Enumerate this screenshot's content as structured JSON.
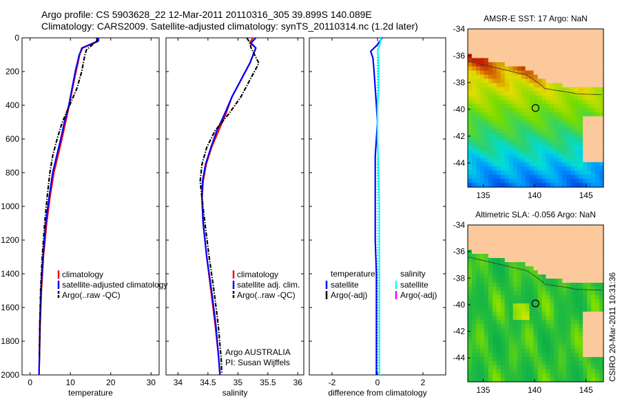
{
  "header": {
    "line1": "Argo profile: CS 5903628_22 12-Mar-2011 20110316_305 39.899S 140.089E",
    "line2": "Climatology: CARS2009. Satellite-adjusted climatology: synTS_20110314.nc (1.2d later)"
  },
  "side_stamp": "CSIRO 20-Mar-2011 10:31:36",
  "colors": {
    "climatology": "#ff0000",
    "satellite": "#0000ff",
    "argo": "#000000",
    "salinity_satellite": "#00ffff",
    "salinity_argo": "#ff00ff",
    "land": "#fbc99b"
  },
  "chart_data": [
    {
      "id": "temperature",
      "type": "line",
      "xlabel": "temperature",
      "ylabel": "",
      "xlim": [
        -2,
        32
      ],
      "ylim": [
        2000,
        0
      ],
      "xticks": [
        0,
        10,
        20,
        30
      ],
      "yticks": [
        0,
        200,
        400,
        600,
        800,
        1000,
        1200,
        1400,
        1600,
        1800,
        2000
      ],
      "y_axis_reversed": true,
      "series": [
        {
          "name": "climatology",
          "color": "#ff0000",
          "style": "solid",
          "x": [
            16.8,
            16.7,
            12.8,
            12.3,
            11.4,
            10.5,
            9.7,
            8.8,
            7.9,
            6.9,
            5.9,
            4.9,
            4.1,
            3.3,
            2.8,
            2.5,
            2.3,
            2.2
          ],
          "y": [
            0,
            20,
            60,
            100,
            200,
            300,
            400,
            500,
            600,
            700,
            800,
            950,
            1100,
            1300,
            1500,
            1700,
            1900,
            2000
          ]
        },
        {
          "name": "satellite-adjusted climatology",
          "color": "#0000ff",
          "style": "solid",
          "x": [
            17.0,
            16.9,
            13.0,
            12.2,
            11.2,
            10.4,
            9.6,
            8.5,
            7.6,
            6.6,
            5.6,
            4.7,
            3.9,
            3.2,
            2.7,
            2.4,
            2.3,
            2.2
          ],
          "y": [
            0,
            20,
            60,
            100,
            200,
            300,
            400,
            500,
            600,
            700,
            800,
            950,
            1100,
            1300,
            1500,
            1700,
            1900,
            2000
          ]
        },
        {
          "name": "Argo(..raw -QC)",
          "color": "#000000",
          "style": "dashdot",
          "x": [
            16.6,
            16.5,
            14.0,
            13.6,
            12.8,
            11.6,
            9.8,
            8.0,
            6.7,
            5.6,
            4.9,
            4.2,
            3.6,
            3.0,
            2.6,
            2.4,
            2.3
          ],
          "y": [
            0,
            20,
            70,
            100,
            200,
            300,
            400,
            500,
            600,
            700,
            800,
            950,
            1100,
            1300,
            1500,
            1700,
            1900
          ]
        }
      ],
      "legend": {
        "placement": "lower-right",
        "entries": [
          "climatology",
          "satellite-adjusted climatology",
          "Argo(..raw -QC)"
        ]
      }
    },
    {
      "id": "salinity",
      "type": "line",
      "xlabel": "salinity",
      "ylabel": "",
      "xlim": [
        33.8,
        36.1
      ],
      "ylim": [
        2000,
        0
      ],
      "xticks": [
        34,
        34.5,
        35,
        35.5,
        36
      ],
      "yticks": [
        0,
        200,
        400,
        600,
        800,
        1000,
        1200,
        1400,
        1600,
        1800,
        2000
      ],
      "y_axis_reversed": true,
      "series": [
        {
          "name": "climatology",
          "color": "#ff0000",
          "style": "solid",
          "x": [
            35.25,
            35.2,
            35.3,
            35.2,
            35.05,
            34.9,
            34.8,
            34.68,
            34.56,
            34.47,
            34.42,
            34.4,
            34.42,
            34.48,
            34.55,
            34.62,
            34.68,
            34.7
          ],
          "y": [
            0,
            30,
            60,
            150,
            250,
            350,
            450,
            550,
            650,
            750,
            850,
            950,
            1100,
            1300,
            1500,
            1700,
            1900,
            2000
          ]
        },
        {
          "name": "satellite adj. clim.",
          "color": "#0000ff",
          "style": "solid",
          "x": [
            35.3,
            35.22,
            35.3,
            35.2,
            35.05,
            34.9,
            34.78,
            34.65,
            34.55,
            34.46,
            34.41,
            34.4,
            34.42,
            34.48,
            34.56,
            34.63,
            34.68,
            34.7
          ],
          "y": [
            0,
            30,
            60,
            150,
            250,
            350,
            450,
            550,
            650,
            750,
            850,
            950,
            1100,
            1300,
            1500,
            1700,
            1900,
            2000
          ]
        },
        {
          "name": "Argo(..raw -QC)",
          "color": "#000000",
          "style": "dashdot",
          "x": [
            35.15,
            35.2,
            35.22,
            35.35,
            35.2,
            35.05,
            34.85,
            34.62,
            34.48,
            34.4,
            34.37,
            34.4,
            34.45,
            34.52,
            34.6,
            34.67,
            34.72,
            34.73
          ],
          "y": [
            0,
            30,
            60,
            150,
            250,
            350,
            450,
            550,
            650,
            750,
            850,
            950,
            1100,
            1300,
            1500,
            1700,
            1900,
            1990
          ]
        }
      ],
      "legend": {
        "placement": "lower-right",
        "entries": [
          "climatology",
          "satellite adj. clim.",
          "Argo(..raw -QC)"
        ]
      },
      "annotations": [
        "Argo AUSTRALIA",
        "PI: Susan Wijffels"
      ]
    },
    {
      "id": "difference",
      "type": "line",
      "xlabel": "difference from climatology",
      "ylabel": "",
      "xlim": [
        -3,
        3
      ],
      "ylim": [
        2000,
        0
      ],
      "xticks": [
        -2,
        0,
        2
      ],
      "yticks": [
        0,
        200,
        400,
        600,
        800,
        1000,
        1200,
        1400,
        1600,
        1800,
        2000
      ],
      "y_axis_reversed": true,
      "zero_line": "dotted",
      "series": [
        {
          "name": "temperature satellite",
          "color": "#0000ff",
          "style": "solid",
          "x": [
            0.2,
            0.0,
            -0.3,
            -0.2,
            -0.15,
            -0.1,
            -0.05,
            0.0,
            -0.05,
            -0.1,
            -0.1,
            -0.1,
            -0.1,
            -0.05,
            -0.05,
            -0.05,
            -0.05
          ],
          "y": [
            0,
            40,
            80,
            120,
            200,
            300,
            400,
            500,
            600,
            700,
            800,
            1000,
            1200,
            1400,
            1600,
            1800,
            2000
          ]
        },
        {
          "name": "salinity satellite",
          "color": "#00ffff",
          "style": "solid",
          "x": [
            0.15,
            0.1,
            0.0,
            0.05,
            0.05,
            0.05,
            0.0,
            0.0,
            0.0,
            0.02,
            0.05,
            0.08,
            0.08,
            0.08,
            0.08,
            0.08,
            0.08
          ],
          "y": [
            0,
            40,
            80,
            120,
            200,
            300,
            400,
            500,
            600,
            700,
            800,
            1000,
            1200,
            1400,
            1600,
            1800,
            2000
          ]
        }
      ],
      "legend": {
        "placement": "lower",
        "columns": [
          {
            "heading": "temperature",
            "entries": [
              "satellite",
              "Argo(-adj)"
            ]
          },
          {
            "heading": "salinity",
            "entries": [
              "satellite",
              "Argo(-adj)"
            ]
          }
        ]
      }
    },
    {
      "id": "sst_map",
      "type": "heatmap",
      "title": "AMSR-E SST: 17 Argo: NaN",
      "xlim": [
        133.5,
        146.7
      ],
      "ylim": [
        -45.8,
        -34
      ],
      "xticks": [
        135,
        140,
        145
      ],
      "yticks": [
        -34,
        -36,
        -38,
        -40,
        -42,
        -44
      ],
      "marker": {
        "lon": 140.089,
        "lat": -39.899
      }
    },
    {
      "id": "sla_map",
      "type": "heatmap",
      "title": "Altimetric SLA: -0.056 Argo: NaN",
      "xlim": [
        133.5,
        146.7
      ],
      "ylim": [
        -45.8,
        -34
      ],
      "xticks": [
        135,
        140,
        145
      ],
      "yticks": [
        -34,
        -36,
        -38,
        -40,
        -42,
        -44
      ],
      "marker": {
        "lon": 140.089,
        "lat": -39.899
      }
    }
  ]
}
